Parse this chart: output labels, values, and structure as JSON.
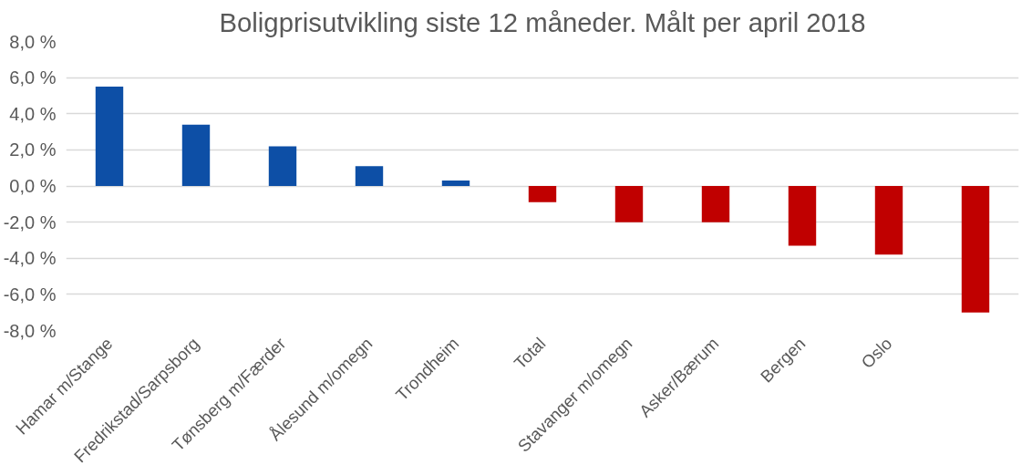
{
  "chart_data": {
    "type": "bar",
    "title": "Boligprisutvikling siste 12 måneder. Målt per april 2018",
    "categories": [
      "Hamar m/Stange",
      "Fredrikstad/Sarpsborg",
      "Tønsberg m/Færder",
      "Ålesund m/omegn",
      "Trondheim",
      "Total",
      "Stavanger m/omegn",
      "Asker/Bærum",
      "Bergen",
      "Oslo",
      null
    ],
    "values": [
      5.5,
      3.4,
      2.2,
      1.1,
      0.3,
      -0.9,
      -2.0,
      -2.0,
      -3.3,
      -3.8,
      -7.0
    ],
    "colors": [
      "#0d4fa6",
      "#0d4fa6",
      "#0d4fa6",
      "#0d4fa6",
      "#0d4fa6",
      "#c00000",
      "#c00000",
      "#c00000",
      "#c00000",
      "#c00000",
      "#c00000"
    ],
    "ylim": [
      -8,
      8
    ],
    "yticks": [
      {
        "value": -8,
        "label": "-8,0 %"
      },
      {
        "value": -6,
        "label": "-6,0 %"
      },
      {
        "value": -4,
        "label": "-4,0 %"
      },
      {
        "value": -2,
        "label": "-2,0 %"
      },
      {
        "value": 0,
        "label": "0,0 %"
      },
      {
        "value": 2,
        "label": "2,0 %"
      },
      {
        "value": 4,
        "label": "4,0 %"
      },
      {
        "value": 6,
        "label": "6,0 %"
      },
      {
        "value": 8,
        "label": "8,0 %"
      }
    ],
    "grid": "y"
  }
}
